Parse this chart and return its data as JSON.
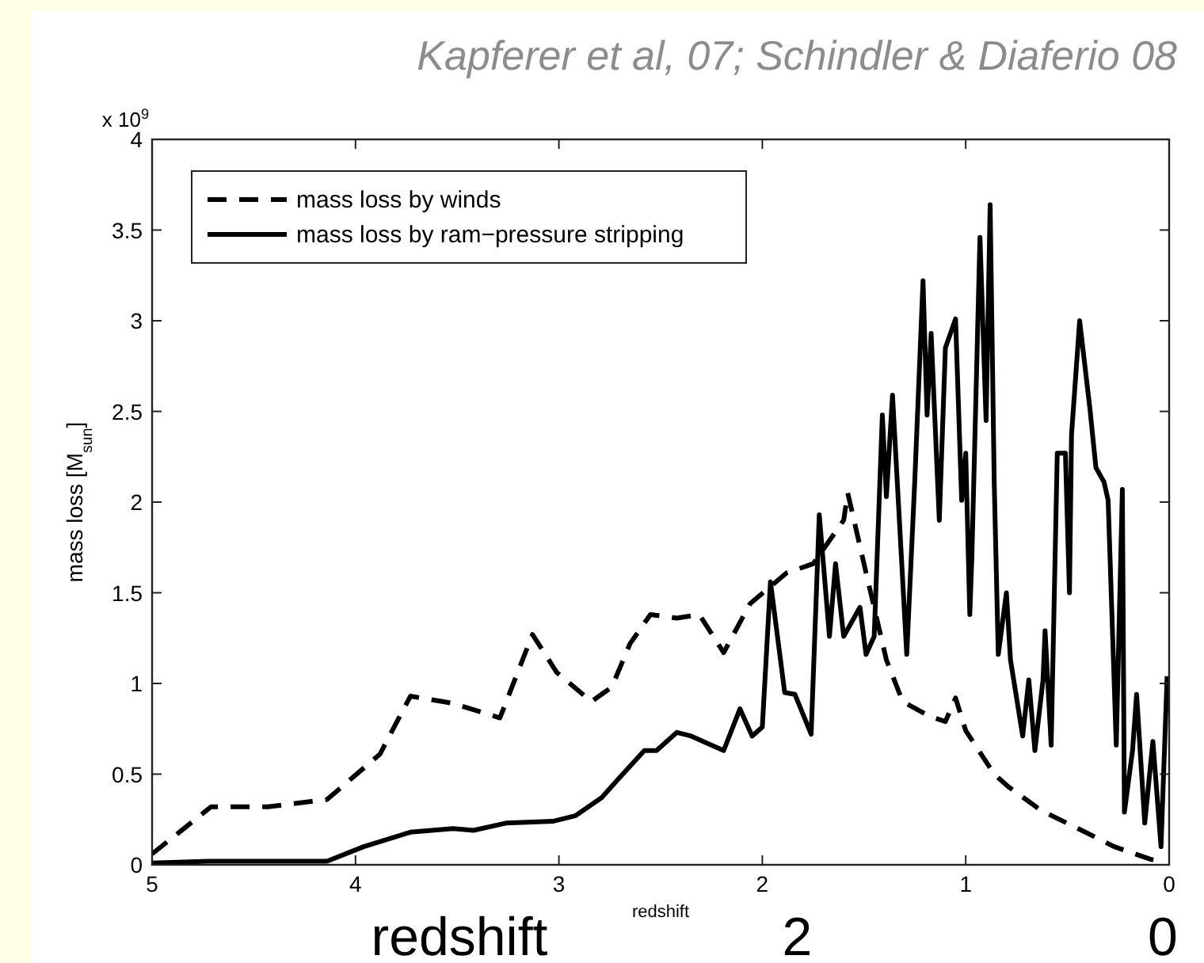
{
  "chart_data": {
    "type": "line",
    "title": "Kapferer et al, 07; Schindler & Diaferio 08",
    "xlabel": "redshift",
    "ylabel": "mass loss [M$_{sun}$]",
    "annotations": [
      "x 10$^{9}$",
      "redshift",
      "2",
      "0"
    ],
    "xlim": [
      5,
      0
    ],
    "xticks": [
      5,
      4,
      3,
      2,
      1,
      0
    ],
    "ylim": [
      0,
      4
    ],
    "yticks": [
      0,
      0.5,
      1,
      1.5,
      2,
      2.5,
      3,
      3.5,
      4
    ],
    "legend": "top left",
    "grid": false,
    "series": [
      {
        "name": "mass loss by winds",
        "color": "#000000",
        "line_style": "dashed",
        "x": [
          5.0,
          4.71,
          4.43,
          4.14,
          3.88,
          3.73,
          3.52,
          3.29,
          3.13,
          3.01,
          2.84,
          2.74,
          2.65,
          2.55,
          2.42,
          2.31,
          2.19,
          2.06,
          1.88,
          1.75,
          1.6,
          1.58,
          1.49,
          1.39,
          1.31,
          1.18,
          1.1,
          1.05,
          1.0,
          0.86,
          0.79,
          0.63,
          0.43,
          0.27,
          0.09,
          0.04
        ],
        "values": [
          0.06,
          0.32,
          0.32,
          0.36,
          0.61,
          0.93,
          0.89,
          0.81,
          1.27,
          1.06,
          0.9,
          0.98,
          1.22,
          1.38,
          1.36,
          1.38,
          1.17,
          1.44,
          1.61,
          1.66,
          1.9,
          2.05,
          1.61,
          1.13,
          0.9,
          0.82,
          0.79,
          0.92,
          0.74,
          0.5,
          0.43,
          0.3,
          0.19,
          0.1,
          0.03,
          0.02
        ]
      },
      {
        "name": "mass loss by ram−pressure stripping",
        "color": "#000000",
        "line_style": "solid",
        "x": [
          5.0,
          4.71,
          4.14,
          3.96,
          3.73,
          3.52,
          3.42,
          3.26,
          3.03,
          2.92,
          2.79,
          2.71,
          2.58,
          2.52,
          2.42,
          2.35,
          2.19,
          2.11,
          2.05,
          2.0,
          1.96,
          1.89,
          1.84,
          1.76,
          1.72,
          1.67,
          1.64,
          1.6,
          1.52,
          1.49,
          1.45,
          1.41,
          1.39,
          1.36,
          1.29,
          1.25,
          1.21,
          1.19,
          1.17,
          1.13,
          1.1,
          1.05,
          1.02,
          1.0,
          0.98,
          0.97,
          0.93,
          0.9,
          0.88,
          0.86,
          0.84,
          0.8,
          0.78,
          0.72,
          0.69,
          0.66,
          0.62,
          0.61,
          0.58,
          0.55,
          0.51,
          0.49,
          0.48,
          0.44,
          0.39,
          0.36,
          0.32,
          0.3,
          0.26,
          0.23,
          0.22,
          0.18,
          0.16,
          0.12,
          0.08,
          0.04,
          0.01
        ],
        "values": [
          0.01,
          0.02,
          0.02,
          0.1,
          0.18,
          0.2,
          0.19,
          0.23,
          0.24,
          0.27,
          0.37,
          0.47,
          0.63,
          0.63,
          0.73,
          0.71,
          0.63,
          0.86,
          0.71,
          0.76,
          1.56,
          0.95,
          0.94,
          0.72,
          1.93,
          1.26,
          1.66,
          1.26,
          1.42,
          1.16,
          1.26,
          2.48,
          2.03,
          2.59,
          1.16,
          2.13,
          3.22,
          2.48,
          2.93,
          1.9,
          2.85,
          3.01,
          2.01,
          2.27,
          1.38,
          1.69,
          3.46,
          2.45,
          3.64,
          2.11,
          1.16,
          1.5,
          1.13,
          0.71,
          1.02,
          0.63,
          1.02,
          1.29,
          0.66,
          2.27,
          2.27,
          1.5,
          2.37,
          3.0,
          2.52,
          2.19,
          2.11,
          2.01,
          0.66,
          2.07,
          0.29,
          0.63,
          0.94,
          0.23,
          0.68,
          0.1,
          1.04
        ]
      }
    ]
  }
}
